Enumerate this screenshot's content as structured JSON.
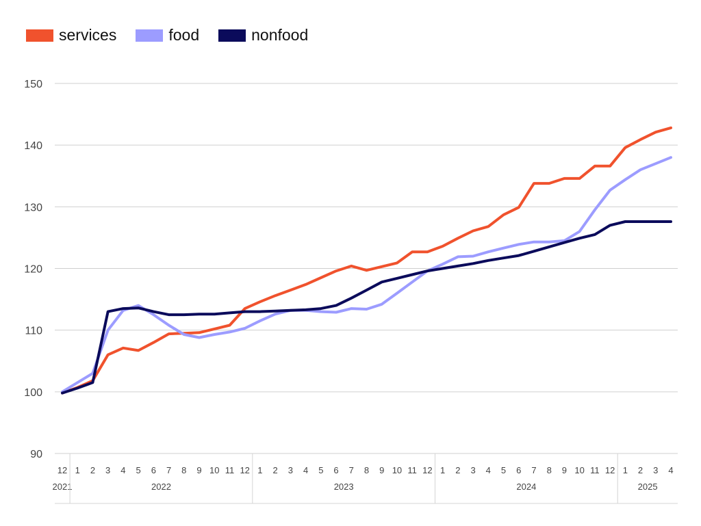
{
  "chart_data": {
    "type": "line",
    "title": "",
    "xlabel": "",
    "ylabel": "",
    "ylim": [
      90,
      150
    ],
    "yticks": [
      90,
      100,
      110,
      120,
      130,
      140,
      150
    ],
    "grid": "horizontal",
    "legend_position": "top-left",
    "x": [
      "2021-12",
      "2022-01",
      "2022-02",
      "2022-03",
      "2022-04",
      "2022-05",
      "2022-06",
      "2022-07",
      "2022-08",
      "2022-09",
      "2022-10",
      "2022-11",
      "2022-12",
      "2023-01",
      "2023-02",
      "2023-03",
      "2023-04",
      "2023-05",
      "2023-06",
      "2023-07",
      "2023-08",
      "2023-09",
      "2023-10",
      "2023-11",
      "2023-12",
      "2024-01",
      "2024-02",
      "2024-03",
      "2024-04",
      "2024-05",
      "2024-06",
      "2024-07",
      "2024-08",
      "2024-09",
      "2024-10",
      "2024-11",
      "2024-12",
      "2025-01",
      "2025-02",
      "2025-03",
      "2025-04"
    ],
    "month_labels": [
      "12",
      "1",
      "2",
      "3",
      "4",
      "5",
      "6",
      "7",
      "8",
      "9",
      "10",
      "11",
      "12",
      "1",
      "2",
      "3",
      "4",
      "5",
      "6",
      "7",
      "8",
      "9",
      "10",
      "11",
      "12",
      "1",
      "2",
      "3",
      "4",
      "5",
      "6",
      "7",
      "8",
      "9",
      "10",
      "11",
      "12",
      "1",
      "2",
      "3",
      "4"
    ],
    "year_groups": [
      {
        "label": "2021",
        "start": 0,
        "end": 0
      },
      {
        "label": "2022",
        "start": 1,
        "end": 12
      },
      {
        "label": "2023",
        "start": 13,
        "end": 24
      },
      {
        "label": "2024",
        "start": 25,
        "end": 36
      },
      {
        "label": "2025",
        "start": 37,
        "end": 40
      }
    ],
    "series": [
      {
        "name": "services",
        "color": "#f0522d",
        "values": [
          99.8,
          100.7,
          101.8,
          106.0,
          107.1,
          106.7,
          108.0,
          109.4,
          109.5,
          109.6,
          110.2,
          110.8,
          113.5,
          114.6,
          115.6,
          116.5,
          117.4,
          118.5,
          119.6,
          120.4,
          119.7,
          120.3,
          120.9,
          122.7,
          122.7,
          123.6,
          124.9,
          126.1,
          126.8,
          128.7,
          129.9,
          133.8,
          133.8,
          134.6,
          134.6,
          136.6,
          136.6,
          139.6,
          140.9,
          142.1,
          142.8
        ]
      },
      {
        "name": "food",
        "color": "#9c9cff",
        "values": [
          100.0,
          101.5,
          103.0,
          110.0,
          113.2,
          114.0,
          112.5,
          110.8,
          109.3,
          108.8,
          109.3,
          109.7,
          110.3,
          111.5,
          112.6,
          113.2,
          113.2,
          113.0,
          112.9,
          113.5,
          113.4,
          114.2,
          116.0,
          117.8,
          119.6,
          120.7,
          121.9,
          122.0,
          122.7,
          123.3,
          123.9,
          124.3,
          124.3,
          124.5,
          126.0,
          129.5,
          132.7,
          134.4,
          136.0,
          137.0,
          138.0
        ]
      },
      {
        "name": "nonfood",
        "color": "#0b0b5b",
        "values": [
          99.8,
          100.6,
          101.5,
          113.0,
          113.5,
          113.6,
          113.0,
          112.5,
          112.5,
          112.6,
          112.6,
          112.8,
          113.0,
          113.0,
          113.1,
          113.2,
          113.3,
          113.5,
          114.0,
          115.2,
          116.5,
          117.8,
          118.4,
          119.0,
          119.6,
          120.0,
          120.4,
          120.8,
          121.3,
          121.7,
          122.1,
          122.8,
          123.5,
          124.2,
          124.9,
          125.5,
          127.0,
          127.6,
          127.6,
          127.6,
          127.6
        ]
      }
    ]
  }
}
